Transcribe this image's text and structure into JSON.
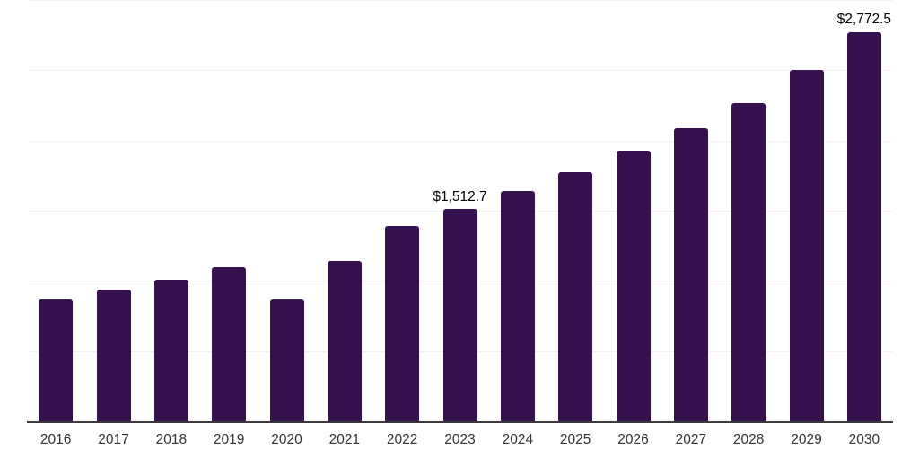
{
  "chart_data": {
    "type": "bar",
    "title": "",
    "xlabel": "",
    "ylabel": "",
    "categories": [
      "2016",
      "2017",
      "2018",
      "2019",
      "2020",
      "2021",
      "2022",
      "2023",
      "2024",
      "2025",
      "2026",
      "2027",
      "2028",
      "2029",
      "2030"
    ],
    "values": [
      870,
      940,
      1010,
      1098,
      865,
      1140,
      1392,
      1512.7,
      1638,
      1772,
      1926,
      2085,
      2266,
      2500,
      2772.5
    ],
    "data_labels": [
      {
        "category": "2023",
        "text": "$1,512.7"
      },
      {
        "category": "2030",
        "text": "$2,772.5"
      }
    ],
    "ylim": [
      0,
      3000
    ],
    "gridline_step": 500,
    "grid": true,
    "legend_position": "none",
    "colors": {
      "bar": "#36114F",
      "gridline": "#f2f2f2",
      "axis_line": "#3a3a3a",
      "tick_label": "#333333",
      "annotation": "#000000",
      "background": "#ffffff"
    }
  }
}
